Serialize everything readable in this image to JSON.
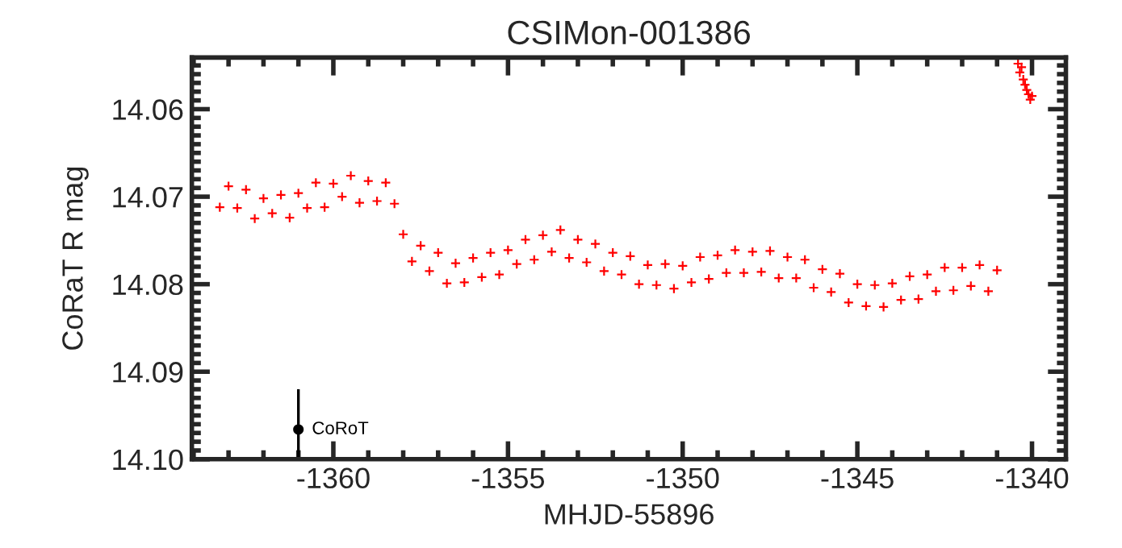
{
  "chart_data": {
    "type": "scatter",
    "title": "CSIMon-001386",
    "xlabel": "MHJD-55896",
    "ylabel": "CoRaT R mag",
    "xlim": [
      -1364.05,
      -1339.03
    ],
    "xticks": [
      -1360,
      -1355,
      -1350,
      -1345,
      -1340
    ],
    "ylim": [
      14.1,
      14.0541
    ],
    "yticks": [
      14.06,
      14.07,
      14.08,
      14.09,
      {
        "value": 14.1,
        "label": "14.10"
      }
    ],
    "grid": false,
    "legend": false,
    "marker": "cross",
    "series": [
      {
        "color": "#ff0000",
        "x": [
          -1363.25,
          -1363.0,
          -1362.75,
          -1362.5,
          -1362.25,
          -1362.0,
          -1361.75,
          -1361.5,
          -1361.25,
          -1361.0,
          -1360.75,
          -1360.5,
          -1360.25,
          -1360.0,
          -1359.75,
          -1359.5,
          -1359.25,
          -1359.0,
          -1358.75,
          -1358.5,
          -1358.25,
          -1358.0,
          -1357.75,
          -1357.5,
          -1357.25,
          -1357.0,
          -1356.75,
          -1356.5,
          -1356.25,
          -1356.0,
          -1355.75,
          -1355.5,
          -1355.25,
          -1355.0,
          -1354.75,
          -1354.5,
          -1354.25,
          -1354.0,
          -1353.75,
          -1353.5,
          -1353.25,
          -1353.0,
          -1352.75,
          -1352.5,
          -1352.25,
          -1352.0,
          -1351.75,
          -1351.5,
          -1351.25,
          -1351.0,
          -1350.75,
          -1350.5,
          -1350.25,
          -1350.0,
          -1349.75,
          -1349.5,
          -1349.25,
          -1349.0,
          -1348.75,
          -1348.5,
          -1348.25,
          -1348.0,
          -1347.75,
          -1347.5,
          -1347.25,
          -1347.0,
          -1346.75,
          -1346.5,
          -1346.25,
          -1346.0,
          -1345.75,
          -1345.5,
          -1345.25,
          -1345.0,
          -1344.75,
          -1344.5,
          -1344.25,
          -1344.0,
          -1343.75,
          -1343.5,
          -1343.25,
          -1343.0,
          -1342.75,
          -1342.5,
          -1342.25,
          -1342.0,
          -1341.75,
          -1341.5,
          -1341.25,
          -1341.0,
          -1340.4,
          -1340.35,
          -1340.3,
          -1340.25,
          -1340.2,
          -1340.15,
          -1340.1,
          -1340.05,
          -1340.0
        ],
        "values": [
          14.0712,
          14.0688,
          14.0713,
          14.0692,
          14.0725,
          14.0702,
          14.0719,
          14.0698,
          14.0724,
          14.0696,
          14.0713,
          14.0684,
          14.0712,
          14.0685,
          14.07,
          14.0676,
          14.0707,
          14.0682,
          14.0705,
          14.0684,
          14.0708,
          14.0743,
          14.0774,
          14.0756,
          14.0785,
          14.0764,
          14.0799,
          14.0776,
          14.0798,
          14.077,
          14.0792,
          14.0764,
          14.0789,
          14.0761,
          14.0777,
          14.0749,
          14.0772,
          14.0744,
          14.0763,
          14.0738,
          14.077,
          14.0749,
          14.0775,
          14.0754,
          14.0785,
          14.0764,
          14.0789,
          14.0768,
          14.08,
          14.0778,
          14.0801,
          14.0777,
          14.0805,
          14.0779,
          14.0798,
          14.0769,
          14.0794,
          14.0767,
          14.0787,
          14.0761,
          14.0787,
          14.0763,
          14.0786,
          14.0762,
          14.0793,
          14.0769,
          14.0793,
          14.0772,
          14.0804,
          14.0783,
          14.0809,
          14.0788,
          14.0821,
          14.08,
          14.0825,
          14.0801,
          14.0826,
          14.0799,
          14.0818,
          14.0791,
          14.0817,
          14.0789,
          14.0808,
          14.0781,
          14.0807,
          14.0781,
          14.0802,
          14.0778,
          14.0808,
          14.0784,
          14.0548,
          14.0558,
          14.0552,
          14.0566,
          14.0572,
          14.0578,
          14.0583,
          14.0589,
          14.0585
        ]
      },
      {
        "name": "CoRoT",
        "color": "#000000",
        "marker": "circle",
        "x": [
          -1361.0
        ],
        "values": [
          14.0966
        ],
        "errors": [
          [
            14.092,
            14.1
          ]
        ]
      }
    ]
  }
}
